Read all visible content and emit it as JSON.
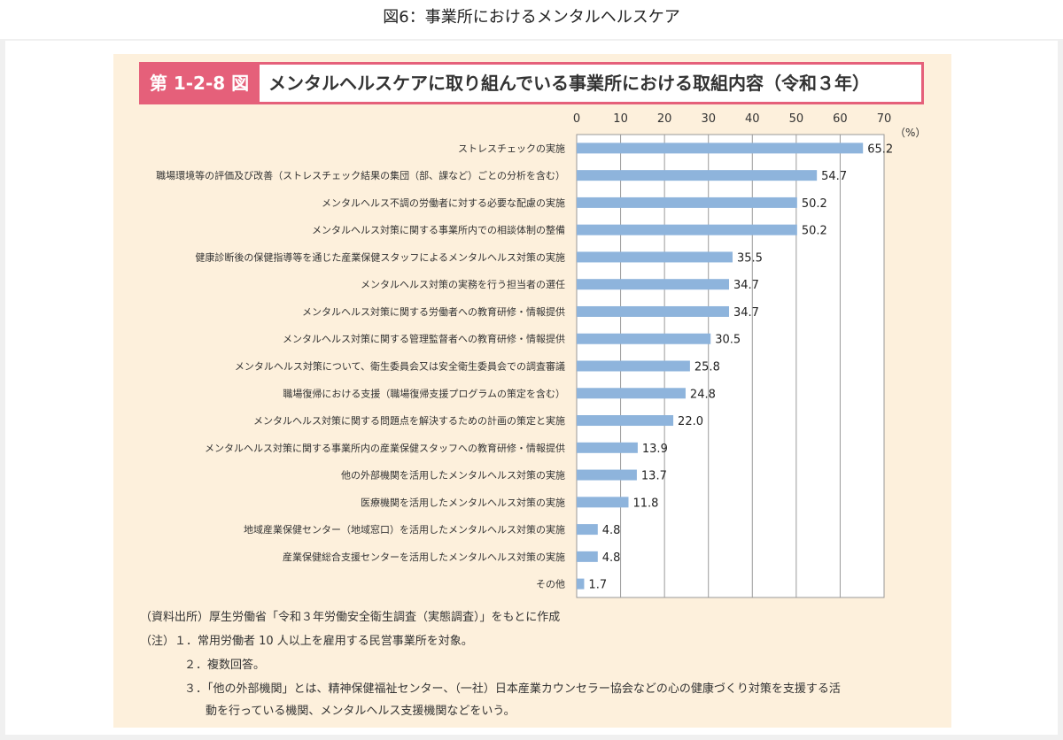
{
  "page": {
    "title": "図6：事業所におけるメンタルヘルスケア"
  },
  "figure": {
    "badge": "第 1-2-8 図",
    "title": "メンタルヘルスケアに取り組んでいる事業所における取組内容（令和３年）"
  },
  "chart_data": {
    "type": "bar",
    "orientation": "horizontal",
    "categories": [
      "ストレスチェックの実施",
      "職場環境等の評価及び改善（ストレスチェック結果の集団（部、課など）ごとの分析を含む）",
      "メンタルヘルス不調の労働者に対する必要な配慮の実施",
      "メンタルヘルス対策に関する事業所内での相談体制の整備",
      "健康診断後の保健指導等を通じた産業保健スタッフによるメンタルヘルス対策の実施",
      "メンタルヘルス対策の実務を行う担当者の選任",
      "メンタルヘルス対策に関する労働者への教育研修・情報提供",
      "メンタルヘルス対策に関する管理監督者への教育研修・情報提供",
      "メンタルヘルス対策について、衛生委員会又は安全衛生委員会での調査審議",
      "職場復帰における支援（職場復帰支援プログラムの策定を含む）",
      "メンタルヘルス対策に関する問題点を解決するための計画の策定と実施",
      "メンタルヘルス対策に関する事業所内の産業保健スタッフへの教育研修・情報提供",
      "他の外部機関を活用したメンタルヘルス対策の実施",
      "医療機関を活用したメンタルヘルス対策の実施",
      "地域産業保健センター（地域窓口）を活用したメンタルヘルス対策の実施",
      "産業保健総合支援センターを活用したメンタルヘルス対策の実施",
      "その他"
    ],
    "values": [
      65.2,
      54.7,
      50.2,
      50.2,
      35.5,
      34.7,
      34.7,
      30.5,
      25.8,
      24.8,
      22.0,
      13.9,
      13.7,
      11.8,
      4.8,
      4.8,
      1.7
    ],
    "value_labels": [
      "65.2",
      "54.7",
      "50.2",
      "50.2",
      "35.5",
      "34.7",
      "34.7",
      "30.5",
      "25.8",
      "24.8",
      "22.0",
      "13.9",
      "13.7",
      "11.8",
      "4.8",
      "4.8",
      "1.7"
    ],
    "xlim": [
      0,
      70
    ],
    "xticks": [
      "0",
      "10",
      "20",
      "30",
      "40",
      "50",
      "60",
      "70"
    ],
    "unit": "（%）",
    "grid": true,
    "bar_color": "#8eb4dc",
    "plot_background": "#ffffff"
  },
  "notes": {
    "source": "（資料出所）厚生労働省「令和３年労働安全衛生調査（実態調査）」をもとに作成",
    "note1": "（注）１．常用労働者 10 人以上を雇用する民営事業所を対象。",
    "note2": "２．複数回答。",
    "note3a": "３．「他の外部機関」とは、精神保健福祉センター、（一社）日本産業カウンセラー協会などの心の健康づくり対策を支援する活",
    "note3b": "動を行っている機関、メンタルヘルス支援機関などをいう。"
  }
}
